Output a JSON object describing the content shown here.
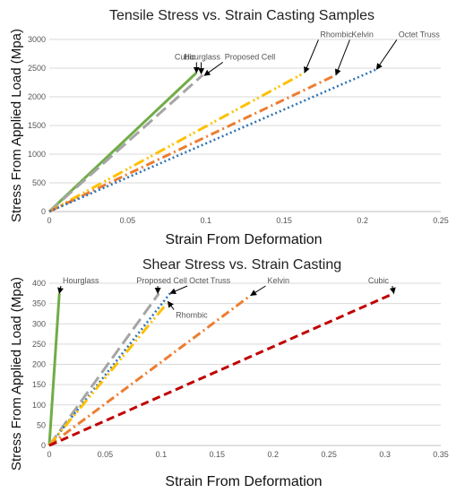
{
  "chart_data": [
    {
      "type": "line",
      "title": "Tensile Stress vs. Strain Casting Samples",
      "xlabel": "Strain From Deformation",
      "ylabel": "Stress From Applied Load (Mpa)",
      "xlim": [
        0,
        0.25
      ],
      "ylim": [
        0,
        3000
      ],
      "xticks": [
        0,
        0.05,
        0.1,
        0.15,
        0.2,
        0.25
      ],
      "yticks": [
        0,
        500,
        1000,
        1500,
        2000,
        2500,
        3000
      ],
      "xtick_labels": [
        "0",
        "0.05",
        "0.1",
        "0.15",
        "0.2",
        "0.25"
      ],
      "ytick_labels": [
        "0",
        "500",
        "1000",
        "1500",
        "2000",
        "2500",
        "3000"
      ],
      "grid": "horizontal",
      "series": [
        {
          "name": "Cubic",
          "color": "#70ad47",
          "dash": "solid",
          "x": [
            0,
            0.094
          ],
          "y": [
            0,
            2420
          ]
        },
        {
          "name": "Hourglass",
          "color": "#a5a5a5",
          "dash": "long-dash",
          "x": [
            0,
            0.098
          ],
          "y": [
            0,
            2380
          ]
        },
        {
          "name": "Rhombic",
          "color": "#ffc000",
          "dash": "dash-dot-dot",
          "x": [
            0,
            0.163
          ],
          "y": [
            0,
            2420
          ]
        },
        {
          "name": "Kelvin",
          "color": "#ed7d31",
          "dash": "dash-dot",
          "x": [
            0,
            0.183
          ],
          "y": [
            0,
            2380
          ]
        },
        {
          "name": "Octet Truss",
          "color": "#2e75b6",
          "dash": "dotted",
          "x": [
            0,
            0.209
          ],
          "y": [
            0,
            2480
          ]
        }
      ],
      "annotations": [
        {
          "text": "Cubic",
          "x": 0.08,
          "y": 2650,
          "arrow_to": [
            0.094,
            2420
          ]
        },
        {
          "text": "Hourglass",
          "x": 0.086,
          "y": 2650,
          "arrow_to": [
            0.097,
            2400
          ]
        },
        {
          "text": "Proposed Cell",
          "x": 0.112,
          "y": 2650,
          "arrow_to": [
            0.099,
            2370
          ]
        },
        {
          "text": "Rhombic",
          "x": 0.173,
          "y": 3040,
          "arrow_to": [
            0.163,
            2420
          ]
        },
        {
          "text": "Kelvin",
          "x": 0.193,
          "y": 3040,
          "arrow_to": [
            0.183,
            2380
          ]
        },
        {
          "text": "Octet Truss",
          "x": 0.223,
          "y": 3040,
          "arrow_to": [
            0.209,
            2480
          ]
        }
      ]
    },
    {
      "type": "line",
      "title": "Shear Stress vs. Strain Casting",
      "xlabel": "Strain From Deformation",
      "ylabel": "Stress From Applied Load (Mpa)",
      "xlim": [
        0,
        0.35
      ],
      "ylim": [
        0,
        400
      ],
      "xticks": [
        0,
        0.05,
        0.1,
        0.15,
        0.2,
        0.25,
        0.3,
        0.35
      ],
      "yticks": [
        0,
        50,
        100,
        150,
        200,
        250,
        300,
        350,
        400
      ],
      "xtick_labels": [
        "0",
        "0.05",
        "0.1",
        "0.15",
        "0.2",
        "0.25",
        "0.3",
        "0.35"
      ],
      "ytick_labels": [
        "0",
        "50",
        "100",
        "150",
        "200",
        "250",
        "300",
        "350",
        "400"
      ],
      "grid": "horizontal",
      "series": [
        {
          "name": "Hourglass",
          "color": "#70ad47",
          "dash": "solid",
          "x": [
            0,
            0.009
          ],
          "y": [
            0,
            375
          ]
        },
        {
          "name": "Proposed Cell",
          "color": "#a5a5a5",
          "dash": "long-dash",
          "x": [
            0,
            0.098
          ],
          "y": [
            0,
            375
          ]
        },
        {
          "name": "Octet Truss",
          "color": "#2e75b6",
          "dash": "dotted",
          "x": [
            0,
            0.108
          ],
          "y": [
            0,
            375
          ]
        },
        {
          "name": "Rhombic",
          "color": "#ffc000",
          "dash": "dash-dot-dot",
          "x": [
            0,
            0.105
          ],
          "y": [
            0,
            350
          ]
        },
        {
          "name": "Kelvin",
          "color": "#ed7d31",
          "dash": "dash-dot",
          "x": [
            0,
            0.18
          ],
          "y": [
            0,
            370
          ]
        },
        {
          "name": "Cubic",
          "color": "#c00000",
          "dash": "dashed",
          "x": [
            0,
            0.308
          ],
          "y": [
            0,
            375
          ]
        }
      ],
      "annotations": [
        {
          "text": "Hourglass",
          "x": 0.012,
          "y": 400,
          "arrow_to": [
            0.009,
            375
          ]
        },
        {
          "text": "Proposed Cell",
          "x": 0.078,
          "y": 400,
          "arrow_to": [
            0.097,
            375
          ]
        },
        {
          "text": "Octet Truss",
          "x": 0.125,
          "y": 400,
          "arrow_to": [
            0.108,
            375
          ]
        },
        {
          "text": "Rhombic",
          "x": 0.113,
          "y": 315,
          "arrow_to": [
            0.106,
            355
          ]
        },
        {
          "text": "Kelvin",
          "x": 0.195,
          "y": 400,
          "arrow_to": [
            0.18,
            370
          ]
        },
        {
          "text": "Cubic",
          "x": 0.285,
          "y": 400,
          "arrow_to": [
            0.308,
            375
          ]
        }
      ]
    }
  ]
}
